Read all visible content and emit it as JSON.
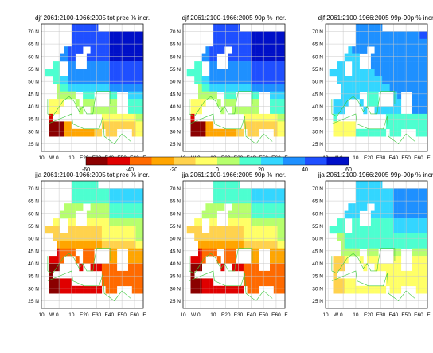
{
  "chart_data": [
    {
      "type": "heatmap",
      "title": "djf 2061:2100-1966:2005 tot prec % incr.",
      "season": "djf",
      "pattern": "djf_mean",
      "lat_ticks": [
        "70 N",
        "65 N",
        "60 N",
        "55 N",
        "50 N",
        "45 N",
        "40 N",
        "35 N",
        "30 N",
        "25 N"
      ],
      "lon_ticks": [
        "10",
        "W 0",
        "10",
        "E20",
        "E30",
        "E40",
        "E50",
        "E60",
        "E"
      ]
    },
    {
      "type": "heatmap",
      "title": "djf 2061:2100-1966:2005 90p % incr.",
      "season": "djf",
      "pattern": "djf_mean",
      "lat_ticks": [
        "70 N",
        "65 N",
        "60 N",
        "55 N",
        "50 N",
        "45 N",
        "40 N",
        "35 N",
        "30 N",
        "25 N"
      ],
      "lon_ticks": [
        "10",
        "W 0",
        "10",
        "E20",
        "E30",
        "E40",
        "E50",
        "E60",
        "E"
      ]
    },
    {
      "type": "heatmap",
      "title": "djf 2061:2100-1966:2005 99p-90p % incr.",
      "season": "djf",
      "pattern": "djf_extreme",
      "lat_ticks": [
        "70 N",
        "65 N",
        "60 N",
        "55 N",
        "50 N",
        "45 N",
        "40 N",
        "35 N",
        "30 N",
        "25 N"
      ],
      "lon_ticks": [
        "10",
        "W 0",
        "10",
        "E20",
        "E30",
        "E40",
        "E50",
        "E60",
        "E"
      ]
    },
    {
      "type": "heatmap",
      "title": "jja 2061:2100-1966:2005 tot prec % incr.",
      "season": "jja",
      "pattern": "jja_mean",
      "lat_ticks": [
        "70 N",
        "65 N",
        "60 N",
        "55 N",
        "50 N",
        "45 N",
        "40 N",
        "35 N",
        "30 N",
        "25 N"
      ],
      "lon_ticks": [
        "10",
        "W 0",
        "10",
        "E20",
        "E30",
        "E40",
        "E50",
        "E60",
        "E"
      ]
    },
    {
      "type": "heatmap",
      "title": "jja 2061:2100-1966:2005 90p % incr.",
      "season": "jja",
      "pattern": "jja_mean",
      "lat_ticks": [
        "70 N",
        "65 N",
        "60 N",
        "55 N",
        "50 N",
        "45 N",
        "40 N",
        "35 N",
        "30 N",
        "25 N"
      ],
      "lon_ticks": [
        "10",
        "W 0",
        "10",
        "E20",
        "E30",
        "E40",
        "E50",
        "E60",
        "E"
      ]
    },
    {
      "type": "heatmap",
      "title": "jja 2061:2100-1966:2005 99p-90p % incr.",
      "season": "jja",
      "pattern": "jja_extreme",
      "lat_ticks": [
        "70 N",
        "65 N",
        "60 N",
        "55 N",
        "50 N",
        "45 N",
        "40 N",
        "35 N",
        "30 N",
        "25 N"
      ],
      "lon_ticks": [
        "10",
        "W 0",
        "10",
        "E20",
        "E30",
        "E40",
        "E50",
        "E60",
        "E"
      ]
    }
  ],
  "colorbar": {
    "labels": [
      "-60",
      "-40",
      "-20",
      "0",
      "20",
      "40",
      "60"
    ],
    "min": -60,
    "max": 60,
    "step": 10,
    "colors": [
      "#8b0000",
      "#e00000",
      "#ff6a00",
      "#ffa500",
      "#ffd24d",
      "#ffff66",
      "#b6ff6d",
      "#4dffd0",
      "#33d6ff",
      "#1e90ff",
      "#1f4fff",
      "#0010c8"
    ]
  }
}
